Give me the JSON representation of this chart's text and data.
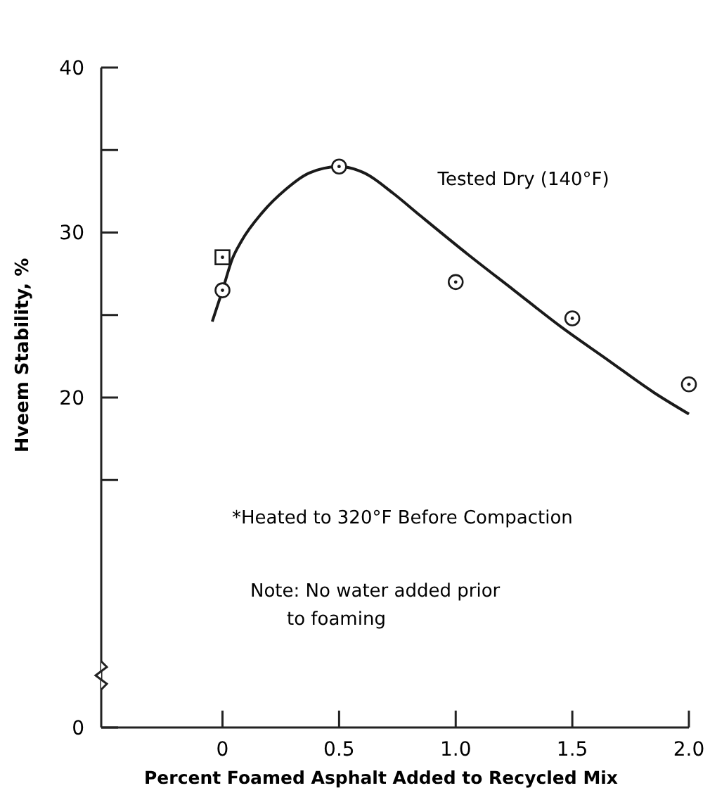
{
  "chart_data": {
    "type": "scatter",
    "xlabel": "Percent Foamed Asphalt Added to Recycled Mix",
    "ylabel": "Hveem Stability, %",
    "xlim": [
      -0.52,
      2.0
    ],
    "xticks": [
      {
        "value": 0,
        "label": "0"
      },
      {
        "value": 0.5,
        "label": "0.5"
      },
      {
        "value": 1,
        "label": "1.0"
      },
      {
        "value": 1.5,
        "label": "1.5"
      },
      {
        "value": 2,
        "label": "2.0"
      }
    ],
    "ylim": [
      0,
      40
    ],
    "yticks": [
      0,
      {
        "value": 15,
        "label": null
      },
      20,
      {
        "value": 25,
        "label": null
      },
      30,
      {
        "value": 35,
        "label": null
      },
      40
    ],
    "grid": false,
    "legend": false,
    "series": [
      {
        "type": "line",
        "name": "Tested Dry (140°F)",
        "color": "#1a1a1a",
        "marker": "none",
        "line_style": "solid",
        "x": [
          -0.044,
          0.0,
          0.042,
          0.082,
          0.17,
          0.27,
          0.37,
          0.5,
          0.61,
          0.73,
          0.85,
          1.05,
          1.25,
          1.45,
          1.65,
          1.85,
          2.0
        ],
        "values": [
          24.6,
          26.5,
          28.4,
          29.5,
          31.2,
          32.6,
          33.6,
          34.0,
          33.6,
          32.4,
          31.0,
          28.7,
          26.5,
          24.3,
          22.3,
          20.3,
          19.0
        ]
      },
      {
        "color": "#1a1a1a",
        "marker": "circle",
        "x": [
          0,
          0.5,
          1.0,
          1.5,
          2.0
        ],
        "values": [
          26.5,
          34.0,
          27.0,
          24.8,
          20.8
        ]
      },
      {
        "color": "#1a1a1a",
        "marker": "square",
        "x": [
          0
        ],
        "values": [
          28.5
        ]
      }
    ],
    "annotations": [
      "*Heated to 320°F Before Compaction",
      "Note: No water added prior to foaming"
    ]
  }
}
